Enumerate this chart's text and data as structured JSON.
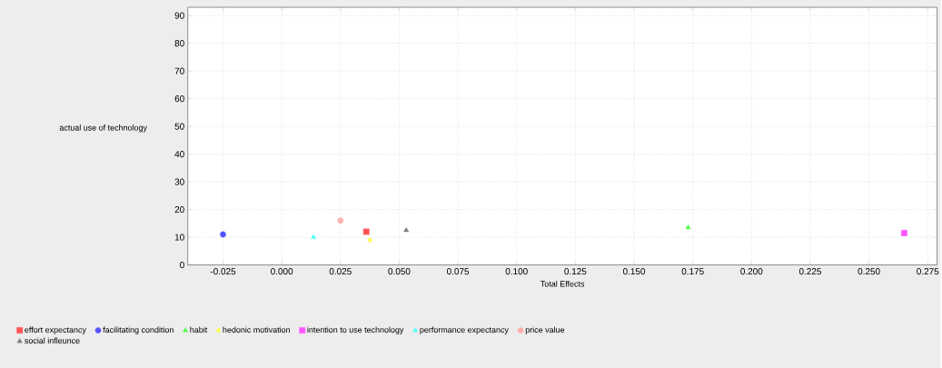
{
  "chart_data": {
    "type": "scatter",
    "xlabel": "Total Effects",
    "ylabel": "actual use of technology",
    "xlim": [
      -0.04,
      0.279
    ],
    "ylim": [
      0,
      93
    ],
    "xticks": [
      {
        "value": -0.025,
        "label": "-0.025"
      },
      {
        "value": 0,
        "label": "0.000"
      },
      0.025,
      {
        "value": 0.05,
        "label": "0.050"
      },
      0.075,
      {
        "value": 0.1,
        "label": "0.100"
      },
      0.125,
      {
        "value": 0.15,
        "label": "0.150"
      },
      0.175,
      {
        "value": 0.2,
        "label": "0.200"
      },
      0.225,
      {
        "value": 0.25,
        "label": "0.250"
      },
      0.275
    ],
    "yticks": [
      0,
      10,
      20,
      30,
      40,
      50,
      60,
      70,
      80,
      90
    ],
    "grid": true,
    "legend": "bottom",
    "series": [
      {
        "name": "effort expectancy",
        "color": "#ff5555",
        "marker": "square",
        "x": [
          0.036
        ],
        "values": [
          12
        ]
      },
      {
        "name": "facilitating condition",
        "color": "#5555ff",
        "marker": "circle",
        "x": [
          -0.025
        ],
        "values": [
          11
        ]
      },
      {
        "name": "habit",
        "color": "#55ff55",
        "marker": "triangle",
        "x": [
          0.173
        ],
        "values": [
          13.5
        ]
      },
      {
        "name": "hedonic motivation",
        "color": "#ffff55",
        "marker": "diamond",
        "x": [
          0.0375
        ],
        "values": [
          9
        ]
      },
      {
        "name": "intention to use technology",
        "color": "#ff55ff",
        "marker": "square",
        "x": [
          0.265
        ],
        "values": [
          11.5
        ]
      },
      {
        "name": "performance expectancy",
        "color": "#55ffff",
        "marker": "triangle",
        "x": [
          0.0135
        ],
        "values": [
          10
        ]
      },
      {
        "name": "price value",
        "color": "#ffafaf",
        "marker": "circle",
        "x": [
          0.025
        ],
        "values": [
          16
        ]
      },
      {
        "name": "social infleunce",
        "color": "#808080",
        "marker": "triangle",
        "x": [
          0.053
        ],
        "values": [
          12.5
        ]
      }
    ]
  }
}
